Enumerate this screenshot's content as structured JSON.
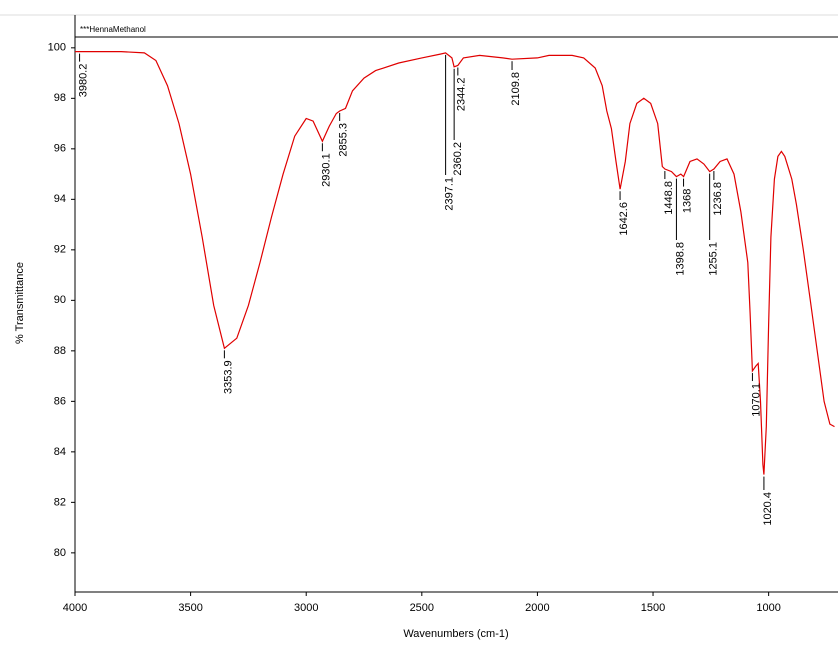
{
  "chart_data": {
    "type": "line",
    "title": "***HennaMethanol",
    "x_label": "Wavenumbers (cm-1)",
    "y_label": "% Transmittance",
    "xlim": [
      4000,
      700
    ],
    "ylim": [
      78.45,
      101.3
    ],
    "xticks": [
      4000,
      3500,
      3000,
      2500,
      2000,
      1500,
      1000
    ],
    "yticks": [
      80,
      82,
      84,
      86,
      88,
      90,
      92,
      94,
      96,
      98,
      100
    ],
    "series": [
      {
        "name": "HennaMethanol",
        "color": "#e00000",
        "x": [
          4000,
          3800,
          3700,
          3650,
          3600,
          3550,
          3500,
          3450,
          3400,
          3353.9,
          3300,
          3250,
          3200,
          3150,
          3100,
          3050,
          3000,
          2970,
          2930.1,
          2900,
          2870,
          2855.3,
          2830,
          2800,
          2750,
          2700,
          2600,
          2500,
          2420,
          2397.1,
          2370,
          2360.2,
          2344.2,
          2320,
          2250,
          2150,
          2109.8,
          2000,
          1950,
          1850,
          1800,
          1750,
          1720,
          1700,
          1680,
          1660,
          1642.6,
          1620,
          1600,
          1570,
          1540,
          1510,
          1480,
          1460,
          1448.8,
          1420,
          1398.8,
          1380,
          1368,
          1340,
          1310,
          1280,
          1255.1,
          1236.8,
          1210,
          1180,
          1150,
          1120,
          1090,
          1080,
          1070.1,
          1055,
          1045,
          1035,
          1025,
          1020.4,
          1010,
          1000,
          990,
          975,
          960,
          945,
          930,
          900,
          880,
          850,
          820,
          790,
          760,
          735,
          715
        ],
        "values": [
          99.85,
          99.85,
          99.8,
          99.5,
          98.5,
          97,
          95,
          92.5,
          89.8,
          88.1,
          88.5,
          89.8,
          91.5,
          93.3,
          95,
          96.5,
          97.2,
          97.1,
          96.3,
          96.9,
          97.4,
          97.5,
          97.6,
          98.3,
          98.8,
          99.1,
          99.4,
          99.6,
          99.75,
          99.8,
          99.6,
          99.25,
          99.3,
          99.6,
          99.7,
          99.6,
          99.55,
          99.6,
          99.7,
          99.7,
          99.6,
          99.2,
          98.5,
          97.5,
          96.8,
          95.5,
          94.4,
          95.5,
          97,
          97.8,
          98,
          97.8,
          97,
          95.3,
          95.2,
          95.1,
          94.9,
          95,
          94.9,
          95.5,
          95.6,
          95.4,
          95.1,
          95.2,
          95.5,
          95.6,
          95,
          93.5,
          91.5,
          89.5,
          87.2,
          87.4,
          87.5,
          86,
          83.5,
          83.1,
          85,
          89,
          92.5,
          94.8,
          95.7,
          95.9,
          95.7,
          94.8,
          93.8,
          92,
          90,
          88,
          86,
          85.1,
          85
        ]
      }
    ],
    "peaks": [
      3980.2,
      3353.9,
      2930.1,
      2855.3,
      2397.1,
      2360.2,
      2344.2,
      2109.8,
      1642.6,
      1448.8,
      1398.8,
      1368.0,
      1255.1,
      1236.8,
      1070.1,
      1020.4
    ]
  }
}
